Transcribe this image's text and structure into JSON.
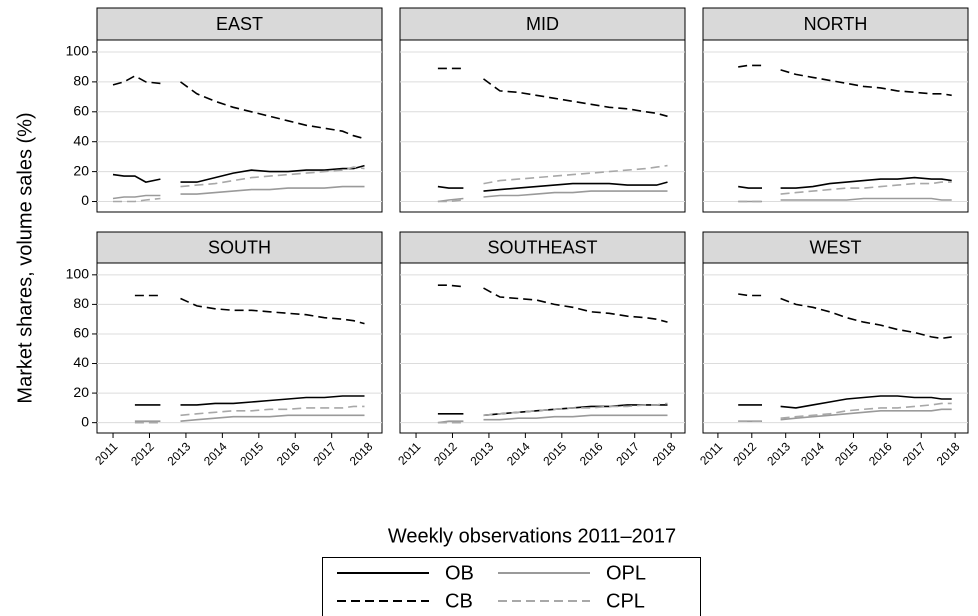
{
  "ylabel": "Market shares, volume sales (%)",
  "xlabel": "Weekly observations 2011–2017",
  "chart_data": [
    {
      "type": "line",
      "title": "EAST",
      "x": [
        2011.0,
        2011.3,
        2011.6,
        2011.9,
        2012.3,
        2012.6,
        2012.85,
        2013.3,
        2013.8,
        2014.3,
        2014.8,
        2015.3,
        2015.8,
        2016.3,
        2016.8,
        2017.3,
        2017.6,
        2017.9
      ],
      "xlim": [
        2010.56,
        2018.38
      ],
      "xticks": [
        2011,
        2012,
        2013,
        2014,
        2015,
        2016,
        2017,
        2018
      ],
      "ylim": [
        -7,
        108
      ],
      "yticks": [
        0,
        20,
        40,
        60,
        80,
        100
      ],
      "grid": true,
      "series": [
        {
          "name": "OB",
          "color": "#000000",
          "dash": "solid",
          "values": [
            18,
            17,
            17,
            13,
            15,
            null,
            13,
            13,
            16,
            19,
            21,
            20,
            20,
            21,
            21,
            22,
            22,
            24
          ]
        },
        {
          "name": "CB",
          "color": "#000000",
          "dash": "dashed",
          "values": [
            78,
            80,
            84,
            80,
            79,
            null,
            80,
            72,
            67,
            63,
            60,
            57,
            54,
            51,
            49,
            47,
            44,
            42
          ]
        },
        {
          "name": "OPL",
          "color": "#9a9a9a",
          "dash": "solid",
          "values": [
            2,
            3,
            3,
            4,
            4,
            null,
            5,
            5,
            6,
            7,
            8,
            8,
            9,
            9,
            9,
            10,
            10,
            10
          ]
        },
        {
          "name": "CPL",
          "color": "#a8a8a8",
          "dash": "dashed",
          "values": [
            0,
            0,
            0,
            1,
            2,
            null,
            10,
            11,
            12,
            14,
            16,
            17,
            18,
            19,
            20,
            21,
            23,
            22
          ]
        }
      ]
    },
    {
      "type": "line",
      "title": "MID",
      "x": [
        2011.0,
        2011.3,
        2011.6,
        2011.9,
        2012.3,
        2012.6,
        2012.85,
        2013.3,
        2013.8,
        2014.3,
        2014.8,
        2015.3,
        2015.8,
        2016.3,
        2016.8,
        2017.3,
        2017.6,
        2017.9
      ],
      "xlim": [
        2010.56,
        2018.38
      ],
      "xticks": [
        2011,
        2012,
        2013,
        2014,
        2015,
        2016,
        2017,
        2018
      ],
      "ylim": [
        -7,
        108
      ],
      "yticks": [
        0,
        20,
        40,
        60,
        80,
        100
      ],
      "grid": true,
      "series": [
        {
          "name": "OB",
          "color": "#000000",
          "dash": "solid",
          "values": [
            null,
            null,
            10,
            9,
            9,
            null,
            7,
            8,
            9,
            10,
            11,
            12,
            12,
            12,
            11,
            11,
            11,
            13
          ]
        },
        {
          "name": "CB",
          "color": "#000000",
          "dash": "dashed",
          "values": [
            null,
            null,
            89,
            89,
            89,
            null,
            82,
            74,
            73,
            71,
            69,
            67,
            65,
            63,
            62,
            60,
            59,
            57
          ]
        },
        {
          "name": "OPL",
          "color": "#9a9a9a",
          "dash": "solid",
          "values": [
            null,
            null,
            0,
            1,
            2,
            null,
            3,
            4,
            4,
            5,
            6,
            6,
            7,
            7,
            7,
            7,
            7,
            7
          ]
        },
        {
          "name": "CPL",
          "color": "#a8a8a8",
          "dash": "dashed",
          "values": [
            null,
            null,
            0,
            0,
            1,
            null,
            12,
            14,
            15,
            16,
            17,
            18,
            19,
            20,
            21,
            22,
            23,
            24
          ]
        }
      ]
    },
    {
      "type": "line",
      "title": "NORTH",
      "x": [
        2011.0,
        2011.3,
        2011.6,
        2011.9,
        2012.3,
        2012.6,
        2012.85,
        2013.3,
        2013.8,
        2014.3,
        2014.8,
        2015.3,
        2015.8,
        2016.3,
        2016.8,
        2017.3,
        2017.6,
        2017.9
      ],
      "xlim": [
        2010.56,
        2018.38
      ],
      "xticks": [
        2011,
        2012,
        2013,
        2014,
        2015,
        2016,
        2017,
        2018
      ],
      "ylim": [
        -7,
        108
      ],
      "yticks": [
        0,
        20,
        40,
        60,
        80,
        100
      ],
      "grid": true,
      "series": [
        {
          "name": "OB",
          "color": "#000000",
          "dash": "solid",
          "values": [
            null,
            null,
            10,
            9,
            9,
            null,
            9,
            9,
            10,
            12,
            13,
            14,
            15,
            15,
            16,
            15,
            15,
            14
          ]
        },
        {
          "name": "CB",
          "color": "#000000",
          "dash": "dashed",
          "values": [
            null,
            null,
            90,
            91,
            91,
            null,
            88,
            85,
            83,
            81,
            79,
            77,
            76,
            74,
            73,
            72,
            72,
            71
          ]
        },
        {
          "name": "OPL",
          "color": "#9a9a9a",
          "dash": "solid",
          "values": [
            null,
            null,
            0,
            0,
            0,
            null,
            1,
            1,
            1,
            1,
            1,
            2,
            2,
            2,
            2,
            2,
            1,
            1
          ]
        },
        {
          "name": "CPL",
          "color": "#a8a8a8",
          "dash": "dashed",
          "values": [
            null,
            null,
            0,
            0,
            0,
            null,
            5,
            6,
            7,
            8,
            9,
            9,
            10,
            11,
            12,
            12,
            13,
            13
          ]
        }
      ]
    },
    {
      "type": "line",
      "title": "SOUTH",
      "x": [
        2011.0,
        2011.3,
        2011.6,
        2011.9,
        2012.3,
        2012.6,
        2012.85,
        2013.3,
        2013.8,
        2014.3,
        2014.8,
        2015.3,
        2015.8,
        2016.3,
        2016.8,
        2017.3,
        2017.6,
        2017.9
      ],
      "xlim": [
        2010.56,
        2018.38
      ],
      "xticks": [
        2011,
        2012,
        2013,
        2014,
        2015,
        2016,
        2017,
        2018
      ],
      "ylim": [
        -7,
        108
      ],
      "yticks": [
        0,
        20,
        40,
        60,
        80,
        100
      ],
      "grid": true,
      "series": [
        {
          "name": "OB",
          "color": "#000000",
          "dash": "solid",
          "values": [
            null,
            null,
            12,
            12,
            12,
            null,
            12,
            12,
            13,
            13,
            14,
            15,
            16,
            17,
            17,
            18,
            18,
            18
          ]
        },
        {
          "name": "CB",
          "color": "#000000",
          "dash": "dashed",
          "values": [
            null,
            null,
            86,
            86,
            86,
            null,
            84,
            79,
            77,
            76,
            76,
            75,
            74,
            73,
            71,
            70,
            69,
            67
          ]
        },
        {
          "name": "OPL",
          "color": "#9a9a9a",
          "dash": "solid",
          "values": [
            null,
            null,
            1,
            1,
            1,
            null,
            1,
            2,
            3,
            4,
            4,
            4,
            5,
            5,
            5,
            5,
            5,
            5
          ]
        },
        {
          "name": "CPL",
          "color": "#a8a8a8",
          "dash": "dashed",
          "values": [
            null,
            null,
            0,
            0,
            0,
            null,
            5,
            6,
            7,
            8,
            8,
            9,
            9,
            10,
            10,
            10,
            11,
            11
          ]
        }
      ]
    },
    {
      "type": "line",
      "title": "SOUTHEAST",
      "x": [
        2011.0,
        2011.3,
        2011.6,
        2011.9,
        2012.3,
        2012.6,
        2012.85,
        2013.3,
        2013.8,
        2014.3,
        2014.8,
        2015.3,
        2015.8,
        2016.3,
        2016.8,
        2017.3,
        2017.6,
        2017.9
      ],
      "xlim": [
        2010.56,
        2018.38
      ],
      "xticks": [
        2011,
        2012,
        2013,
        2014,
        2015,
        2016,
        2017,
        2018
      ],
      "ylim": [
        -7,
        108
      ],
      "yticks": [
        0,
        20,
        40,
        60,
        80,
        100
      ],
      "grid": true,
      "series": [
        {
          "name": "OB",
          "color": "#000000",
          "dash": "solid",
          "values": [
            null,
            null,
            6,
            6,
            6,
            null,
            5,
            6,
            7,
            8,
            9,
            10,
            11,
            11,
            12,
            12,
            12,
            12
          ]
        },
        {
          "name": "CB",
          "color": "#000000",
          "dash": "dashed",
          "values": [
            null,
            null,
            93,
            93,
            92,
            null,
            91,
            85,
            84,
            83,
            80,
            78,
            75,
            74,
            72,
            71,
            70,
            68
          ]
        },
        {
          "name": "OPL",
          "color": "#9a9a9a",
          "dash": "solid",
          "values": [
            null,
            null,
            0,
            1,
            1,
            null,
            2,
            2,
            3,
            3,
            4,
            4,
            5,
            5,
            5,
            5,
            5,
            5
          ]
        },
        {
          "name": "CPL",
          "color": "#a8a8a8",
          "dash": "dashed",
          "values": [
            null,
            null,
            0,
            0,
            0,
            null,
            5,
            6,
            7,
            8,
            9,
            10,
            10,
            11,
            11,
            12,
            12,
            13
          ]
        }
      ]
    },
    {
      "type": "line",
      "title": "WEST",
      "x": [
        2011.0,
        2011.3,
        2011.6,
        2011.9,
        2012.3,
        2012.6,
        2012.85,
        2013.3,
        2013.8,
        2014.3,
        2014.8,
        2015.3,
        2015.8,
        2016.3,
        2016.8,
        2017.3,
        2017.6,
        2017.9
      ],
      "xlim": [
        2010.56,
        2018.38
      ],
      "xticks": [
        2011,
        2012,
        2013,
        2014,
        2015,
        2016,
        2017,
        2018
      ],
      "ylim": [
        -7,
        108
      ],
      "yticks": [
        0,
        20,
        40,
        60,
        80,
        100
      ],
      "grid": true,
      "series": [
        {
          "name": "OB",
          "color": "#000000",
          "dash": "solid",
          "values": [
            null,
            null,
            12,
            12,
            12,
            null,
            11,
            10,
            12,
            14,
            16,
            17,
            18,
            18,
            17,
            17,
            16,
            16
          ]
        },
        {
          "name": "CB",
          "color": "#000000",
          "dash": "dashed",
          "values": [
            null,
            null,
            87,
            86,
            86,
            null,
            84,
            80,
            78,
            75,
            71,
            68,
            66,
            63,
            61,
            58,
            57,
            58
          ]
        },
        {
          "name": "OPL",
          "color": "#9a9a9a",
          "dash": "solid",
          "values": [
            null,
            null,
            1,
            1,
            1,
            null,
            2,
            3,
            4,
            5,
            6,
            7,
            8,
            8,
            8,
            8,
            9,
            9
          ]
        },
        {
          "name": "CPL",
          "color": "#a8a8a8",
          "dash": "dashed",
          "values": [
            null,
            null,
            1,
            1,
            1,
            null,
            3,
            4,
            5,
            6,
            8,
            9,
            10,
            10,
            11,
            12,
            13,
            13
          ]
        }
      ]
    }
  ]
}
